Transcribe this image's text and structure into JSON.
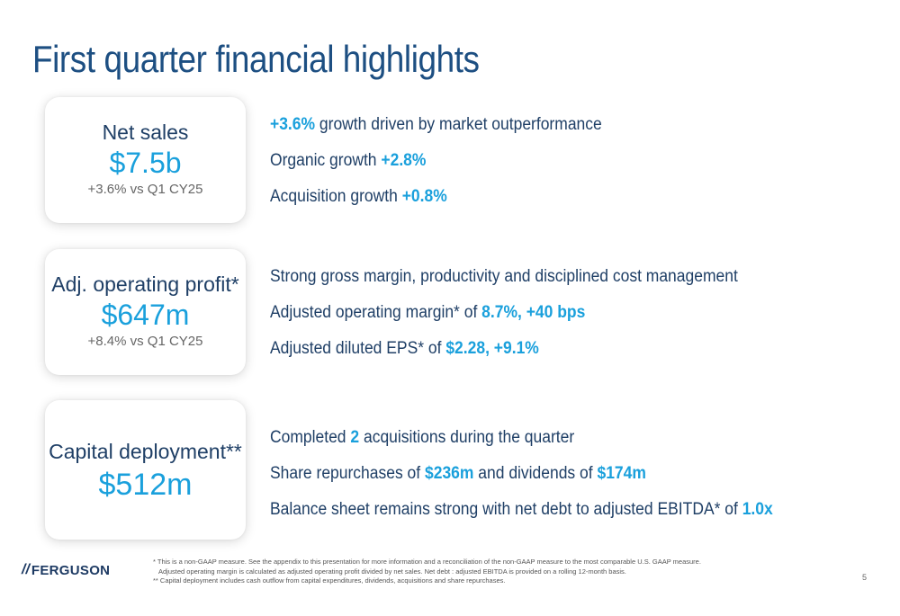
{
  "slide": {
    "title": "First quarter financial highlights",
    "page_number": "5"
  },
  "cards": [
    {
      "label": "Net sales",
      "value": "$7.5b",
      "sub": "+3.6% vs Q1 CY25"
    },
    {
      "label": "Adj. operating profit*",
      "value": "$647m",
      "sub": "+8.4% vs Q1 CY25"
    },
    {
      "label": "Capital deployment**",
      "value": "$512m"
    }
  ],
  "bullets": {
    "net_sales": [
      {
        "pre": "",
        "hl": "+3.6%",
        "post": " growth driven by market outperformance"
      },
      {
        "pre": "Organic growth ",
        "hl": "+2.8%",
        "post": ""
      },
      {
        "pre": "Acquisition growth ",
        "hl": "+0.8%",
        "post": ""
      }
    ],
    "operating_profit": [
      {
        "pre": "Strong gross margin, productivity and disciplined cost management",
        "hl": "",
        "post": ""
      },
      {
        "pre": "Adjusted operating margin* of ",
        "hl": "8.7%, +40 bps",
        "post": ""
      },
      {
        "pre": "Adjusted diluted EPS* of ",
        "hl": "$2.28, +9.1%",
        "post": ""
      }
    ],
    "capital_deployment": [
      {
        "pre": "Completed ",
        "hl": "2",
        "post": " acquisitions during the quarter"
      },
      {
        "pre": "Share repurchases of ",
        "hl": "$236m",
        "mid": " and dividends of ",
        "hl2": "$174m"
      },
      {
        "pre": "Balance sheet remains strong with net debt to adjusted EBITDA* of ",
        "hl": "1.0x",
        "post": ""
      }
    ]
  },
  "logo": {
    "mark": "//",
    "text": "FERGUSON"
  },
  "footnotes": [
    "* This is a non-GAAP measure. See the appendix to this presentation for more information and a reconciliation of the non-GAAP measure to the most comparable U.S. GAAP measure.",
    "Adjusted operating margin is calculated as adjusted operating profit divided by net sales. Net debt : adjusted EBITDA is provided on a rolling 12-month basis.",
    "** Capital deployment includes cash outflow from capital expenditures, dividends, acquisitions and share repurchases."
  ],
  "colors": {
    "title": "#1d4f82",
    "accent": "#1aa0dc",
    "text": "#1f3f66"
  }
}
